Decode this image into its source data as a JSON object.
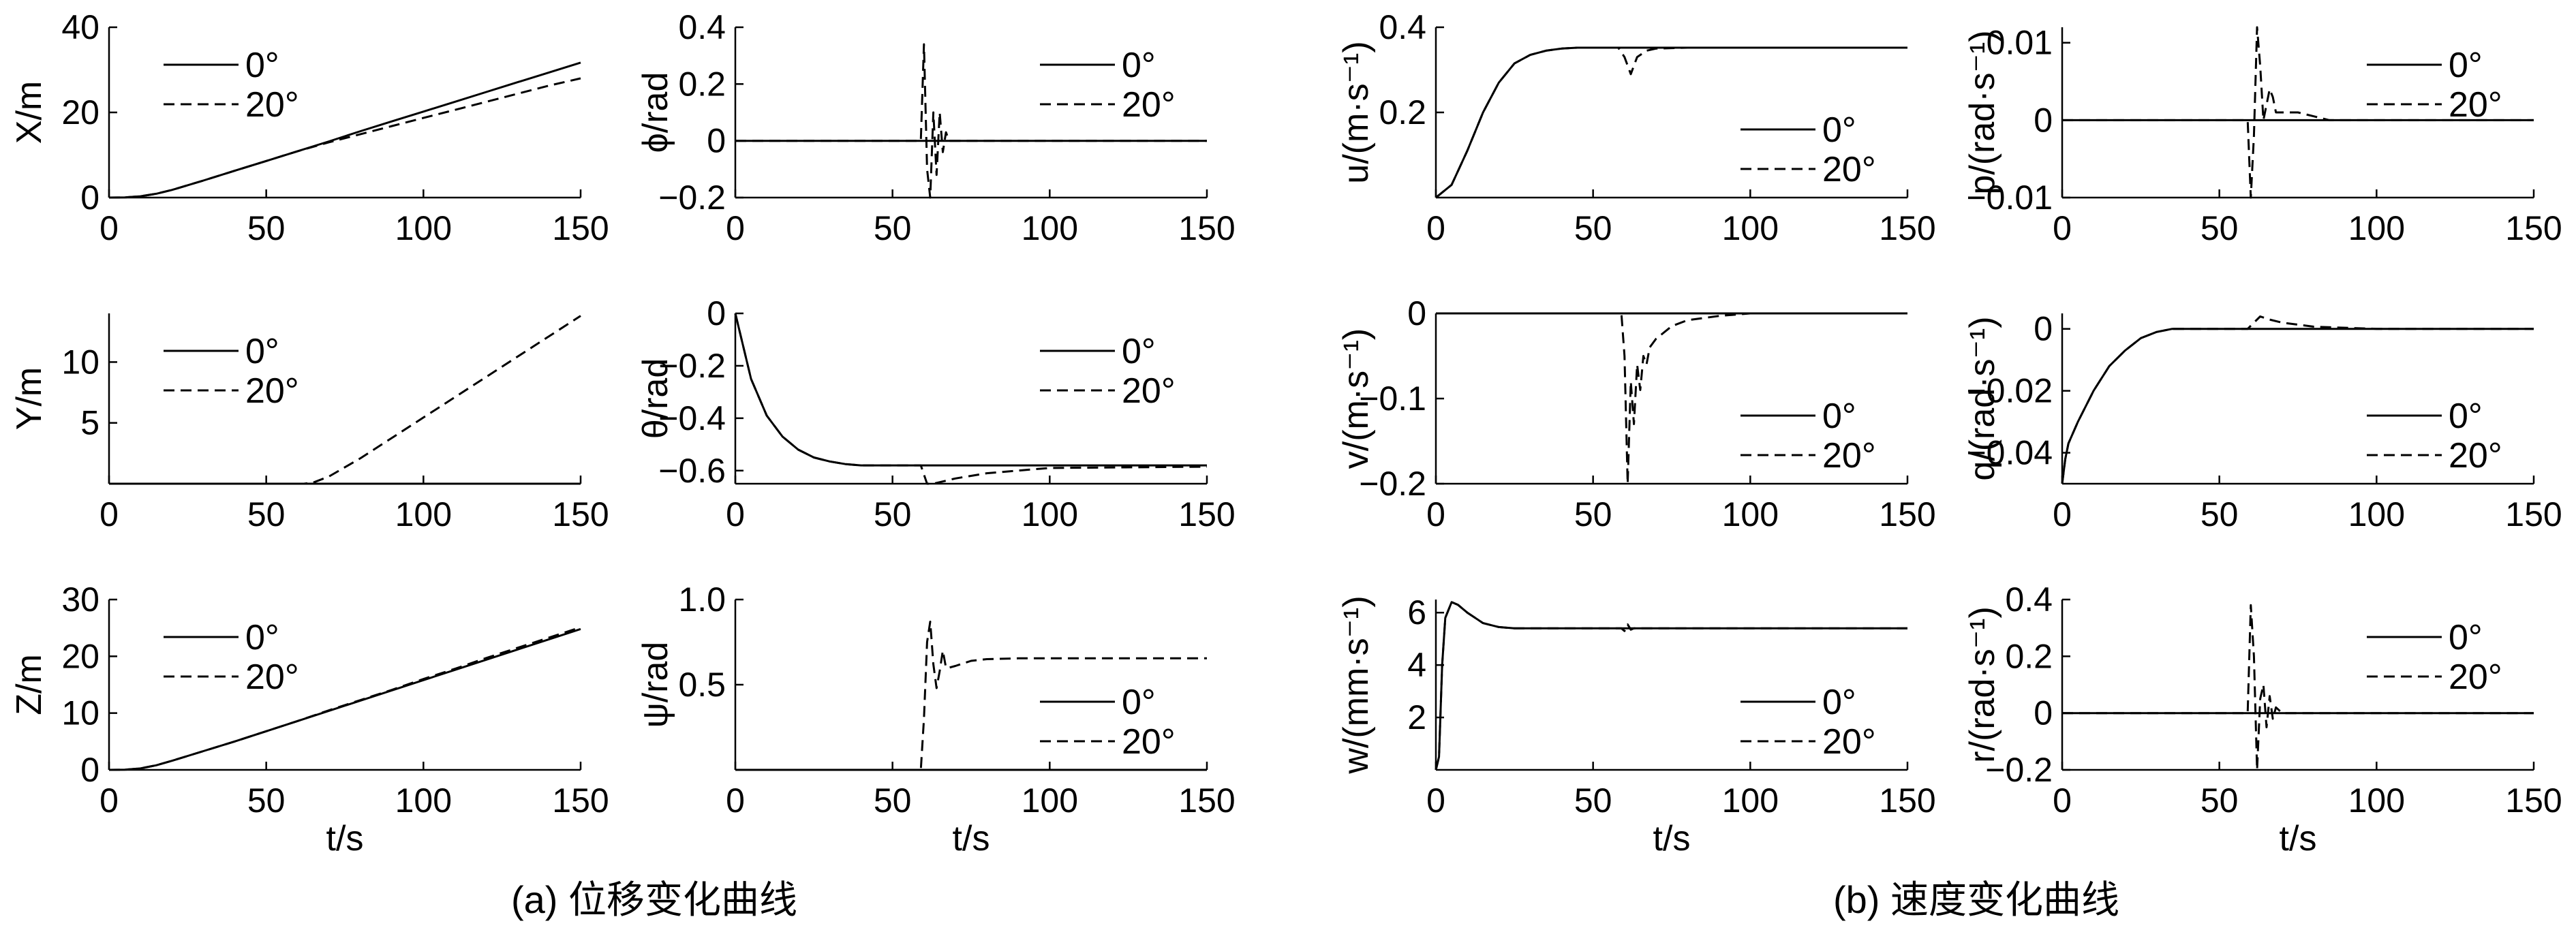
{
  "captions": {
    "a": "(a) 位移变化曲线",
    "b": "(b) 速度变化曲线"
  },
  "legend": {
    "solid": "0°",
    "dashed": "20°"
  },
  "x_common": {
    "label": "t/s",
    "ticks": [
      0,
      50,
      100,
      150
    ],
    "range": [
      0,
      150
    ]
  },
  "chart_data": [
    {
      "id": "X",
      "type": "line",
      "ylabel": "X/m",
      "ylim": [
        0,
        40
      ],
      "yticks": [
        {
          "v": 0,
          "t": "0"
        },
        {
          "v": 20,
          "t": "20"
        },
        {
          "v": 40,
          "t": "40"
        }
      ],
      "legend_pos": "top-left",
      "series": [
        {
          "name": "0°",
          "style": "solid",
          "x": [
            0,
            5,
            10,
            15,
            20,
            25,
            30,
            40,
            50,
            60,
            70,
            80,
            90,
            100,
            110,
            120,
            130,
            140,
            150
          ],
          "y": [
            0,
            0.03,
            0.3,
            0.9,
            1.8,
            2.9,
            4.0,
            6.3,
            8.6,
            10.9,
            13.2,
            15.6,
            17.9,
            20.2,
            22.5,
            24.8,
            27.1,
            29.4,
            31.7
          ]
        },
        {
          "name": "20°",
          "style": "dashed",
          "x": [
            0,
            5,
            10,
            15,
            20,
            25,
            30,
            40,
            50,
            60,
            70,
            80,
            90,
            100,
            110,
            120,
            130,
            140,
            150
          ],
          "y": [
            0,
            0.03,
            0.3,
            0.9,
            1.8,
            2.9,
            4.0,
            6.3,
            8.6,
            10.9,
            13.0,
            14.9,
            16.8,
            18.7,
            20.6,
            22.5,
            24.4,
            26.3,
            28.0
          ]
        }
      ]
    },
    {
      "id": "phi",
      "type": "line",
      "ylabel": "ϕ/rad",
      "ylim": [
        -0.2,
        0.4
      ],
      "yticks": [
        {
          "v": -0.2,
          "t": "−0.2"
        },
        {
          "v": 0,
          "t": "0"
        },
        {
          "v": 0.2,
          "t": "0.2"
        },
        {
          "v": 0.4,
          "t": "0.4"
        }
      ],
      "legend_pos": "top-right",
      "series": [
        {
          "name": "0°",
          "style": "solid",
          "x": [
            0,
            150
          ],
          "y": [
            0,
            0
          ]
        },
        {
          "name": "20°",
          "style": "dashed",
          "x": [
            0,
            59,
            60,
            61,
            62,
            63,
            64,
            65,
            66,
            67,
            68,
            70,
            150
          ],
          "y": [
            0,
            0,
            0.34,
            -0.1,
            -0.2,
            0.1,
            -0.12,
            0.1,
            -0.04,
            0.03,
            0,
            0,
            0
          ]
        }
      ]
    },
    {
      "id": "u",
      "type": "line",
      "ylabel": "u/(m·s⁻¹)",
      "ylim": [
        0,
        0.4
      ],
      "yticks": [
        {
          "v": 0.2,
          "t": "0.2"
        },
        {
          "v": 0.4,
          "t": "0.4"
        }
      ],
      "legend_pos": "bottom-right",
      "series": [
        {
          "name": "0°",
          "style": "solid",
          "x": [
            0,
            5,
            10,
            15,
            20,
            25,
            30,
            35,
            40,
            45,
            50,
            150
          ],
          "y": [
            0,
            0.03,
            0.11,
            0.2,
            0.27,
            0.315,
            0.335,
            0.345,
            0.35,
            0.352,
            0.352,
            0.352
          ]
        },
        {
          "name": "20°",
          "style": "dashed",
          "x": [
            0,
            5,
            10,
            15,
            20,
            25,
            30,
            35,
            40,
            45,
            50,
            58,
            60,
            62,
            64,
            67,
            70,
            80,
            150
          ],
          "y": [
            0,
            0.03,
            0.11,
            0.2,
            0.27,
            0.315,
            0.335,
            0.345,
            0.35,
            0.352,
            0.352,
            0.352,
            0.33,
            0.29,
            0.33,
            0.345,
            0.35,
            0.352,
            0.352
          ]
        }
      ]
    },
    {
      "id": "p",
      "type": "line",
      "ylabel": "p/(rad·s⁻¹)",
      "ylim": [
        -0.01,
        0.012
      ],
      "yticks": [
        {
          "v": -0.01,
          "t": "−0.01"
        },
        {
          "v": 0,
          "t": "0"
        },
        {
          "v": 0.01,
          "t": "0.01"
        }
      ],
      "legend_pos": "top-right",
      "series": [
        {
          "name": "0°",
          "style": "solid",
          "x": [
            0,
            150
          ],
          "y": [
            0,
            0
          ]
        },
        {
          "name": "20°",
          "style": "dashed",
          "x": [
            0,
            59,
            60,
            61,
            62,
            63,
            64,
            65,
            66,
            67,
            68,
            70,
            75,
            80,
            85,
            150
          ],
          "y": [
            0,
            0,
            -0.01,
            -0.002,
            0.012,
            0.007,
            0,
            0.002,
            0.004,
            0.003,
            0.001,
            0.001,
            0.001,
            0.0005,
            0,
            0
          ]
        }
      ]
    },
    {
      "id": "Y",
      "type": "line",
      "ylabel": "Y/m",
      "ylim": [
        0,
        14
      ],
      "yticks": [
        {
          "v": 5,
          "t": "5"
        },
        {
          "v": 10,
          "t": "10"
        }
      ],
      "legend_pos": "top-left",
      "series": [
        {
          "name": "0°",
          "style": "solid",
          "x": [
            0,
            150
          ],
          "y": [
            0,
            0
          ]
        },
        {
          "name": "20°",
          "style": "dashed",
          "x": [
            0,
            62,
            65,
            70,
            80,
            150
          ],
          "y": [
            0,
            0,
            0.1,
            0.6,
            2.1,
            13.8
          ]
        }
      ]
    },
    {
      "id": "theta",
      "type": "line",
      "ylabel": "θ/rad",
      "ylim": [
        -0.65,
        0
      ],
      "yticks": [
        {
          "v": -0.6,
          "t": "−0.6"
        },
        {
          "v": -0.4,
          "t": "−0.4"
        },
        {
          "v": -0.2,
          "t": "−0.2"
        },
        {
          "v": 0,
          "t": "0"
        }
      ],
      "legend_pos": "top-right",
      "series": [
        {
          "name": "0°",
          "style": "solid",
          "x": [
            0,
            5,
            10,
            15,
            20,
            25,
            30,
            35,
            40,
            50,
            60,
            150
          ],
          "y": [
            0,
            -0.25,
            -0.39,
            -0.47,
            -0.52,
            -0.55,
            -0.565,
            -0.575,
            -0.58,
            -0.58,
            -0.58,
            -0.58
          ]
        },
        {
          "name": "20°",
          "style": "dashed",
          "x": [
            0,
            5,
            10,
            15,
            20,
            25,
            30,
            35,
            40,
            50,
            59,
            61,
            63,
            70,
            80,
            100,
            150
          ],
          "y": [
            0,
            -0.25,
            -0.39,
            -0.47,
            -0.52,
            -0.55,
            -0.565,
            -0.575,
            -0.58,
            -0.58,
            -0.58,
            -0.65,
            -0.65,
            -0.63,
            -0.61,
            -0.59,
            -0.585
          ]
        }
      ]
    },
    {
      "id": "v",
      "type": "line",
      "ylabel": "v/(m·s⁻¹)",
      "ylim": [
        -0.2,
        0
      ],
      "yticks": [
        {
          "v": -0.2,
          "t": "−0.2"
        },
        {
          "v": -0.1,
          "t": "−0.1"
        },
        {
          "v": 0,
          "t": "0"
        }
      ],
      "legend_pos": "bottom-right",
      "series": [
        {
          "name": "0°",
          "style": "solid",
          "x": [
            0,
            150
          ],
          "y": [
            0,
            0
          ]
        },
        {
          "name": "20°",
          "style": "dashed",
          "x": [
            0,
            59,
            60,
            61,
            62,
            63,
            64,
            65,
            66,
            67,
            68,
            70,
            75,
            80,
            90,
            100,
            150
          ],
          "y": [
            0,
            0,
            -0.05,
            -0.2,
            -0.08,
            -0.13,
            -0.06,
            -0.09,
            -0.05,
            -0.06,
            -0.04,
            -0.03,
            -0.015,
            -0.008,
            -0.003,
            0,
            0
          ]
        }
      ]
    },
    {
      "id": "q",
      "type": "line",
      "ylabel": "q/(rad·s⁻¹)",
      "ylim": [
        -0.05,
        0.005
      ],
      "yticks": [
        {
          "v": -0.04,
          "t": "−0.04"
        },
        {
          "v": -0.02,
          "t": "−0.02"
        },
        {
          "v": 0,
          "t": "0"
        }
      ],
      "legend_pos": "bottom-right",
      "series": [
        {
          "name": "0°",
          "style": "solid",
          "x": [
            0,
            1,
            2,
            5,
            10,
            15,
            20,
            25,
            30,
            35,
            40,
            50,
            150
          ],
          "y": [
            -0.05,
            -0.042,
            -0.037,
            -0.03,
            -0.02,
            -0.012,
            -0.007,
            -0.003,
            -0.001,
            0,
            0,
            0,
            0
          ]
        },
        {
          "name": "20°",
          "style": "dashed",
          "x": [
            0,
            1,
            2,
            5,
            10,
            15,
            20,
            25,
            30,
            35,
            40,
            50,
            59,
            61,
            63,
            66,
            70,
            80,
            100,
            150
          ],
          "y": [
            -0.05,
            -0.042,
            -0.037,
            -0.03,
            -0.02,
            -0.012,
            -0.007,
            -0.003,
            -0.001,
            0,
            0,
            0,
            0,
            0.002,
            0.004,
            0.003,
            0.002,
            0.0007,
            0,
            0
          ]
        }
      ]
    },
    {
      "id": "Z",
      "type": "line",
      "ylabel": "Z/m",
      "ylim": [
        0,
        30
      ],
      "yticks": [
        {
          "v": 0,
          "t": "0"
        },
        {
          "v": 10,
          "t": "10"
        },
        {
          "v": 20,
          "t": "20"
        },
        {
          "v": 30,
          "t": "30"
        }
      ],
      "legend_pos": "top-left",
      "series": [
        {
          "name": "0°",
          "style": "solid",
          "x": [
            0,
            5,
            10,
            15,
            20,
            30,
            40,
            50,
            60,
            70,
            80,
            90,
            100,
            110,
            120,
            130,
            140,
            150
          ],
          "y": [
            0,
            0.03,
            0.25,
            0.8,
            1.6,
            3.3,
            5.0,
            6.8,
            8.6,
            10.4,
            12.2,
            14.0,
            15.8,
            17.6,
            19.4,
            21.2,
            23.0,
            24.8
          ]
        },
        {
          "name": "20°",
          "style": "dashed",
          "x": [
            0,
            5,
            10,
            15,
            20,
            30,
            40,
            50,
            60,
            70,
            80,
            90,
            100,
            110,
            120,
            130,
            140,
            150
          ],
          "y": [
            0,
            0.03,
            0.25,
            0.8,
            1.6,
            3.3,
            5.0,
            6.8,
            8.6,
            10.5,
            12.3,
            14.1,
            16.0,
            17.8,
            19.7,
            21.5,
            23.3,
            25.1
          ]
        }
      ]
    },
    {
      "id": "psi",
      "type": "line",
      "ylabel": "ψ/rad",
      "ylim": [
        0,
        1.0
      ],
      "yticks": [
        {
          "v": 0.5,
          "t": "0.5"
        },
        {
          "v": 1.0,
          "t": "1.0"
        }
      ],
      "legend_pos": "bottom-right",
      "series": [
        {
          "name": "0°",
          "style": "solid",
          "x": [
            0,
            150
          ],
          "y": [
            0,
            0
          ]
        },
        {
          "name": "20°",
          "style": "dashed",
          "x": [
            0,
            59,
            60,
            61,
            62,
            63,
            64,
            65,
            66,
            67,
            68,
            70,
            75,
            80,
            90,
            150
          ],
          "y": [
            0,
            0,
            0.3,
            0.75,
            0.87,
            0.62,
            0.48,
            0.58,
            0.7,
            0.6,
            0.6,
            0.61,
            0.64,
            0.65,
            0.655,
            0.655
          ]
        }
      ]
    },
    {
      "id": "w",
      "type": "line",
      "ylabel": "w/(mm·s⁻¹)",
      "ylim": [
        0,
        6.5
      ],
      "yticks": [
        {
          "v": 2,
          "t": "2"
        },
        {
          "v": 4,
          "t": "4"
        },
        {
          "v": 6,
          "t": "6"
        }
      ],
      "legend_pos": "bottom-right",
      "series": [
        {
          "name": "0°",
          "style": "solid",
          "x": [
            0,
            1,
            2,
            3,
            5,
            7,
            10,
            15,
            20,
            25,
            30,
            150
          ],
          "y": [
            0,
            0.5,
            4,
            5.8,
            6.4,
            6.3,
            6.0,
            5.6,
            5.45,
            5.4,
            5.4,
            5.4
          ]
        },
        {
          "name": "20°",
          "style": "dashed",
          "x": [
            0,
            1,
            2,
            3,
            5,
            7,
            10,
            15,
            20,
            25,
            30,
            59,
            60,
            61,
            62,
            63,
            150
          ],
          "y": [
            0,
            0.5,
            4,
            5.8,
            6.4,
            6.3,
            6.0,
            5.6,
            5.45,
            5.4,
            5.4,
            5.4,
            5.3,
            5.55,
            5.35,
            5.4,
            5.4
          ]
        }
      ]
    },
    {
      "id": "r",
      "type": "line",
      "ylabel": "r/(rad·s⁻¹)",
      "ylim": [
        -0.2,
        0.4
      ],
      "yticks": [
        {
          "v": -0.2,
          "t": "−0.2"
        },
        {
          "v": 0,
          "t": "0"
        },
        {
          "v": 0.2,
          "t": "0.2"
        },
        {
          "v": 0.4,
          "t": "0.4"
        }
      ],
      "legend_pos": "top-right",
      "series": [
        {
          "name": "0°",
          "style": "solid",
          "x": [
            0,
            150
          ],
          "y": [
            0,
            0
          ]
        },
        {
          "name": "20°",
          "style": "dashed",
          "x": [
            0,
            59,
            60,
            61,
            62,
            63,
            64,
            65,
            66,
            67,
            68,
            70,
            72,
            150
          ],
          "y": [
            0,
            0,
            0.38,
            0.2,
            -0.2,
            0.05,
            0.1,
            -0.05,
            0.06,
            -0.02,
            0.02,
            0,
            0,
            0
          ]
        }
      ]
    }
  ]
}
